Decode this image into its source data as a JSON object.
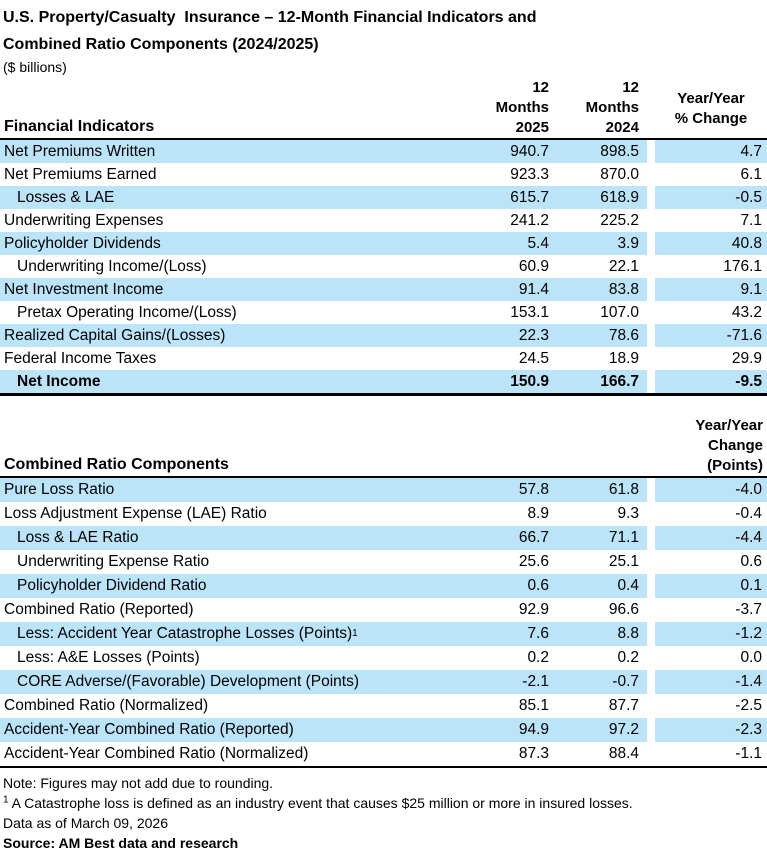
{
  "title": {
    "line1": "U.S. Property/Casualty  Insurance – 12-Month Financial Indicators and",
    "line2": "Combined Ratio Components (2024/2025)",
    "subtitle": "($ billions)"
  },
  "colors": {
    "row_highlight": "#BCE4F9",
    "text": "#000000",
    "rule": "#000000"
  },
  "table1": {
    "header": {
      "label": "Financial Indicators",
      "col2025": [
        "12",
        "Months",
        "2025"
      ],
      "col2024": [
        "12",
        "Months",
        "2024"
      ],
      "change": [
        "Year/Year",
        "% Change"
      ]
    },
    "rows": [
      {
        "label": "Net Premiums Written",
        "v2025": "940.7",
        "v2024": "898.5",
        "change": "4.7",
        "indent": false,
        "bold": false,
        "shaded": true
      },
      {
        "label": "Net Premiums Earned",
        "v2025": "923.3",
        "v2024": "870.0",
        "change": "6.1",
        "indent": false,
        "bold": false,
        "shaded": false
      },
      {
        "label": "Losses & LAE",
        "v2025": "615.7",
        "v2024": "618.9",
        "change": "-0.5",
        "indent": true,
        "bold": false,
        "shaded": true
      },
      {
        "label": "Underwriting Expenses",
        "v2025": "241.2",
        "v2024": "225.2",
        "change": "7.1",
        "indent": false,
        "bold": false,
        "shaded": false
      },
      {
        "label": "Policyholder Dividends",
        "v2025": "5.4",
        "v2024": "3.9",
        "change": "40.8",
        "indent": false,
        "bold": false,
        "shaded": true
      },
      {
        "label": "Underwriting Income/(Loss)",
        "v2025": "60.9",
        "v2024": "22.1",
        "change": "176.1",
        "indent": true,
        "bold": false,
        "shaded": false
      },
      {
        "label": "Net Investment Income",
        "v2025": "91.4",
        "v2024": "83.8",
        "change": "9.1",
        "indent": false,
        "bold": false,
        "shaded": true
      },
      {
        "label": "Pretax Operating Income/(Loss)",
        "v2025": "153.1",
        "v2024": "107.0",
        "change": "43.2",
        "indent": true,
        "bold": false,
        "shaded": false
      },
      {
        "label": "Realized Capital Gains/(Losses)",
        "v2025": "22.3",
        "v2024": "78.6",
        "change": "-71.6",
        "indent": false,
        "bold": false,
        "shaded": true
      },
      {
        "label": "Federal Income Taxes",
        "v2025": "24.5",
        "v2024": "18.9",
        "change": "29.9",
        "indent": false,
        "bold": false,
        "shaded": false
      },
      {
        "label": "Net Income",
        "v2025": "150.9",
        "v2024": "166.7",
        "change": "-9.5",
        "indent": true,
        "bold": true,
        "shaded": true
      }
    ]
  },
  "table2": {
    "header": {
      "label": "Combined Ratio Components",
      "change": [
        "Year/Year",
        "Change",
        "(Points)"
      ]
    },
    "rows": [
      {
        "label": "Pure Loss Ratio",
        "v2025": "57.8",
        "v2024": "61.8",
        "change": "-4.0",
        "indent": false,
        "bold": false,
        "shaded": true
      },
      {
        "label": "Loss Adjustment Expense (LAE) Ratio",
        "v2025": "8.9",
        "v2024": "9.3",
        "change": "-0.4",
        "indent": false,
        "bold": false,
        "shaded": false
      },
      {
        "label": "Loss & LAE Ratio",
        "v2025": "66.7",
        "v2024": "71.1",
        "change": "-4.4",
        "indent": true,
        "bold": false,
        "shaded": true
      },
      {
        "label": "Underwriting Expense Ratio",
        "v2025": "25.6",
        "v2024": "25.1",
        "change": "0.6",
        "indent": true,
        "bold": false,
        "shaded": false
      },
      {
        "label": "Policyholder Dividend Ratio",
        "v2025": "0.6",
        "v2024": "0.4",
        "change": "0.1",
        "indent": true,
        "bold": false,
        "shaded": true
      },
      {
        "label": "Combined Ratio (Reported)",
        "v2025": "92.9",
        "v2024": "96.6",
        "change": "-3.7",
        "indent": false,
        "bold": false,
        "shaded": false
      },
      {
        "label": "Less: Accident Year Catastrophe Losses (Points)",
        "sup": "1",
        "v2025": "7.6",
        "v2024": "8.8",
        "change": "-1.2",
        "indent": true,
        "bold": false,
        "shaded": true
      },
      {
        "label": "Less: A&E Losses (Points)",
        "v2025": "0.2",
        "v2024": "0.2",
        "change": "0.0",
        "indent": true,
        "bold": false,
        "shaded": false
      },
      {
        "label": "CORE Adverse/(Favorable) Development (Points)",
        "v2025": "-2.1",
        "v2024": "-0.7",
        "change": "-1.4",
        "indent": true,
        "bold": false,
        "shaded": true
      },
      {
        "label": "Combined Ratio (Normalized)",
        "v2025": "85.1",
        "v2024": "87.7",
        "change": "-2.5",
        "indent": false,
        "bold": false,
        "shaded": false
      },
      {
        "label": "Accident-Year Combined Ratio (Reported)",
        "v2025": "94.9",
        "v2024": "97.2",
        "change": "-2.3",
        "indent": false,
        "bold": false,
        "shaded": true
      },
      {
        "label": "Accident-Year Combined Ratio (Normalized)",
        "v2025": "87.3",
        "v2024": "88.4",
        "change": "-1.1",
        "indent": false,
        "bold": false,
        "shaded": false
      }
    ]
  },
  "footer": {
    "note": "Note: Figures may not add due to rounding.",
    "footnote_sup": "1",
    "footnote_text": " A Catastrophe loss is defined as an industry event that causes $25 million or more in insured losses.",
    "data_as_of": "Data as of March 09, 2026",
    "source": "Source: AM Best data and research"
  }
}
